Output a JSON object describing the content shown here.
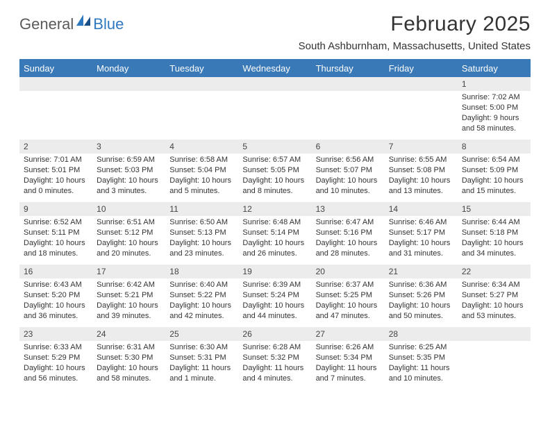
{
  "brand": {
    "general": "General",
    "blue": "Blue"
  },
  "title": "February 2025",
  "location": "South Ashburnham, Massachusetts, United States",
  "colors": {
    "header_bg": "#3a79b7",
    "header_text": "#ffffff",
    "daynum_bg": "#ececec",
    "text": "#333333",
    "logo_gray": "#5a5a5a",
    "logo_blue": "#2e78c0",
    "page_bg": "#ffffff"
  },
  "typography": {
    "title_fontsize": 30,
    "location_fontsize": 15,
    "dayheader_fontsize": 13,
    "daynum_fontsize": 12,
    "cell_fontsize": 11
  },
  "calendar": {
    "type": "table",
    "columns": [
      "Sunday",
      "Monday",
      "Tuesday",
      "Wednesday",
      "Thursday",
      "Friday",
      "Saturday"
    ],
    "weeks": [
      [
        null,
        null,
        null,
        null,
        null,
        null,
        {
          "n": "1",
          "sunrise": "7:02 AM",
          "sunset": "5:00 PM",
          "daylight": "9 hours and 58 minutes."
        }
      ],
      [
        {
          "n": "2",
          "sunrise": "7:01 AM",
          "sunset": "5:01 PM",
          "daylight": "10 hours and 0 minutes."
        },
        {
          "n": "3",
          "sunrise": "6:59 AM",
          "sunset": "5:03 PM",
          "daylight": "10 hours and 3 minutes."
        },
        {
          "n": "4",
          "sunrise": "6:58 AM",
          "sunset": "5:04 PM",
          "daylight": "10 hours and 5 minutes."
        },
        {
          "n": "5",
          "sunrise": "6:57 AM",
          "sunset": "5:05 PM",
          "daylight": "10 hours and 8 minutes."
        },
        {
          "n": "6",
          "sunrise": "6:56 AM",
          "sunset": "5:07 PM",
          "daylight": "10 hours and 10 minutes."
        },
        {
          "n": "7",
          "sunrise": "6:55 AM",
          "sunset": "5:08 PM",
          "daylight": "10 hours and 13 minutes."
        },
        {
          "n": "8",
          "sunrise": "6:54 AM",
          "sunset": "5:09 PM",
          "daylight": "10 hours and 15 minutes."
        }
      ],
      [
        {
          "n": "9",
          "sunrise": "6:52 AM",
          "sunset": "5:11 PM",
          "daylight": "10 hours and 18 minutes."
        },
        {
          "n": "10",
          "sunrise": "6:51 AM",
          "sunset": "5:12 PM",
          "daylight": "10 hours and 20 minutes."
        },
        {
          "n": "11",
          "sunrise": "6:50 AM",
          "sunset": "5:13 PM",
          "daylight": "10 hours and 23 minutes."
        },
        {
          "n": "12",
          "sunrise": "6:48 AM",
          "sunset": "5:14 PM",
          "daylight": "10 hours and 26 minutes."
        },
        {
          "n": "13",
          "sunrise": "6:47 AM",
          "sunset": "5:16 PM",
          "daylight": "10 hours and 28 minutes."
        },
        {
          "n": "14",
          "sunrise": "6:46 AM",
          "sunset": "5:17 PM",
          "daylight": "10 hours and 31 minutes."
        },
        {
          "n": "15",
          "sunrise": "6:44 AM",
          "sunset": "5:18 PM",
          "daylight": "10 hours and 34 minutes."
        }
      ],
      [
        {
          "n": "16",
          "sunrise": "6:43 AM",
          "sunset": "5:20 PM",
          "daylight": "10 hours and 36 minutes."
        },
        {
          "n": "17",
          "sunrise": "6:42 AM",
          "sunset": "5:21 PM",
          "daylight": "10 hours and 39 minutes."
        },
        {
          "n": "18",
          "sunrise": "6:40 AM",
          "sunset": "5:22 PM",
          "daylight": "10 hours and 42 minutes."
        },
        {
          "n": "19",
          "sunrise": "6:39 AM",
          "sunset": "5:24 PM",
          "daylight": "10 hours and 44 minutes."
        },
        {
          "n": "20",
          "sunrise": "6:37 AM",
          "sunset": "5:25 PM",
          "daylight": "10 hours and 47 minutes."
        },
        {
          "n": "21",
          "sunrise": "6:36 AM",
          "sunset": "5:26 PM",
          "daylight": "10 hours and 50 minutes."
        },
        {
          "n": "22",
          "sunrise": "6:34 AM",
          "sunset": "5:27 PM",
          "daylight": "10 hours and 53 minutes."
        }
      ],
      [
        {
          "n": "23",
          "sunrise": "6:33 AM",
          "sunset": "5:29 PM",
          "daylight": "10 hours and 56 minutes."
        },
        {
          "n": "24",
          "sunrise": "6:31 AM",
          "sunset": "5:30 PM",
          "daylight": "10 hours and 58 minutes."
        },
        {
          "n": "25",
          "sunrise": "6:30 AM",
          "sunset": "5:31 PM",
          "daylight": "11 hours and 1 minute."
        },
        {
          "n": "26",
          "sunrise": "6:28 AM",
          "sunset": "5:32 PM",
          "daylight": "11 hours and 4 minutes."
        },
        {
          "n": "27",
          "sunrise": "6:26 AM",
          "sunset": "5:34 PM",
          "daylight": "11 hours and 7 minutes."
        },
        {
          "n": "28",
          "sunrise": "6:25 AM",
          "sunset": "5:35 PM",
          "daylight": "11 hours and 10 minutes."
        },
        null
      ]
    ],
    "labels": {
      "sunrise": "Sunrise:",
      "sunset": "Sunset:",
      "daylight": "Daylight:"
    }
  }
}
